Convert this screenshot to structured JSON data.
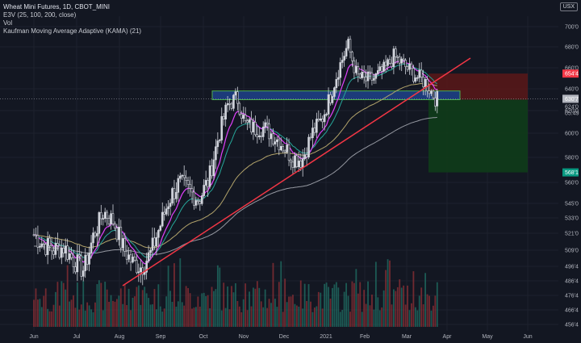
{
  "legend": {
    "title": "Wheat Mini Futures, 1D, CBOT_MINI",
    "ema": "E3V (25, 100, 200, close)",
    "vol": "Vol",
    "kama": "Kaufman Moving Average Adaptive (KAMA) (21)"
  },
  "currency": "USX",
  "colors": {
    "background": "#131722",
    "up": "#d1d4dc",
    "down": "#131722",
    "trendline": "#f23645",
    "zone": "#1c3b7a",
    "zone_border": "#4caf50",
    "stop": "#5a1818",
    "target": "#0f3c1a",
    "ema25": "#26a69a",
    "ema100": "#b2a36b",
    "ema200": "#9598a1",
    "kama": "#e040fb"
  },
  "chart_data": {
    "type": "candlestick",
    "x_tick_labels": [
      "Jun",
      "Jul",
      "Aug",
      "Sep",
      "Oct",
      "Nov",
      "Dec",
      "2021",
      "Feb",
      "Mar",
      "Apr",
      "May",
      "Jun"
    ],
    "y_tick_labels": [
      "700'0",
      "680'0",
      "660'0",
      "640'0",
      "620'0",
      "600'0",
      "580'0",
      "560'0",
      "545'0",
      "533'0",
      "521'0",
      "509'0",
      "496'4",
      "486'4",
      "476'4",
      "466'4",
      "456'4"
    ],
    "ylim": [
      456.5,
      710
    ],
    "price_badges": {
      "stop": "654'4",
      "current": "630'7",
      "last": "624'0",
      "countdown": "05:49",
      "target": "568'1"
    },
    "close_path": [
      [
        "Jun 1",
        520
      ],
      [
        "Jun 8",
        513
      ],
      [
        "Jun 15",
        509
      ],
      [
        "Jun 22",
        511
      ],
      [
        "Jun 29",
        501
      ],
      [
        "Jul 6",
        494
      ],
      [
        "Jul 13",
        520
      ],
      [
        "Jul 20",
        538
      ],
      [
        "Jul 27",
        530
      ],
      [
        "Aug 3",
        512
      ],
      [
        "Aug 10",
        500
      ],
      [
        "Aug 17",
        496
      ],
      [
        "Aug 24",
        507
      ],
      [
        "Aug 31",
        528
      ],
      [
        "Sep 7",
        548
      ],
      [
        "Sep 14",
        560
      ],
      [
        "Sep 21",
        554
      ],
      [
        "Sep 28",
        548
      ],
      [
        "Oct 5",
        562
      ],
      [
        "Oct 12",
        596
      ],
      [
        "Oct 19",
        625
      ],
      [
        "Oct 26",
        632
      ],
      [
        "Nov 2",
        608
      ],
      [
        "Nov 9",
        604
      ],
      [
        "Nov 16",
        605
      ],
      [
        "Nov 23",
        598
      ],
      [
        "Nov 30",
        590
      ],
      [
        "Dec 7",
        580
      ],
      [
        "Dec 14",
        578
      ],
      [
        "Dec 21",
        600
      ],
      [
        "Dec 28",
        612
      ],
      [
        "Jan 4",
        632
      ],
      [
        "Jan 11",
        660
      ],
      [
        "Jan 18",
        682
      ],
      [
        "Jan 25",
        652
      ],
      [
        "Feb 1",
        648
      ],
      [
        "Feb 8",
        650
      ],
      [
        "Feb 15",
        658
      ],
      [
        "Feb 22",
        671
      ],
      [
        "Mar 1",
        660
      ],
      [
        "Mar 8",
        652
      ],
      [
        "Mar 15",
        646
      ],
      [
        "Mar 22",
        632
      ],
      [
        "Mar 24",
        630
      ]
    ],
    "resistance_zone": [
      630,
      638
    ],
    "stop_zone": [
      630,
      654.5
    ],
    "target_zone": [
      568,
      630
    ]
  }
}
